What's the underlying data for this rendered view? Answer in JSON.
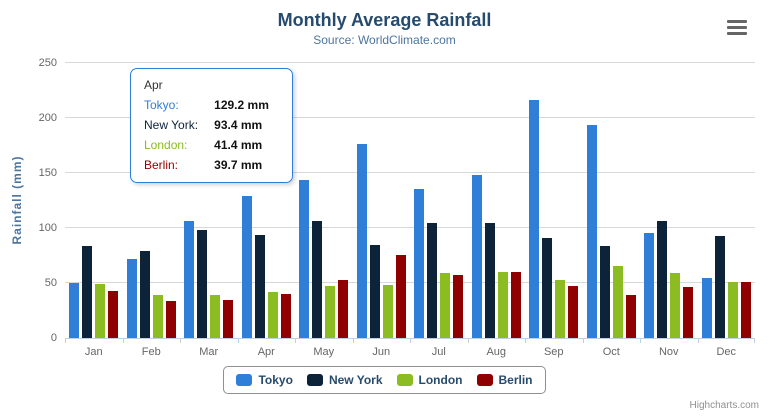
{
  "header": {
    "title": "Monthly Average Rainfall",
    "subtitle": "Source: WorldClimate.com"
  },
  "y_axis": {
    "title": "Rainfall (mm)",
    "ticks": [
      0,
      50,
      100,
      150,
      200,
      250
    ]
  },
  "chart_data": {
    "type": "bar",
    "title": "Monthly Average Rainfall",
    "subtitle": "Source: WorldClimate.com",
    "xlabel": "",
    "ylabel": "Rainfall (mm)",
    "ylim": [
      0,
      250
    ],
    "grid": true,
    "legend_position": "bottom",
    "categories": [
      "Jan",
      "Feb",
      "Mar",
      "Apr",
      "May",
      "Jun",
      "Jul",
      "Aug",
      "Sep",
      "Oct",
      "Nov",
      "Dec"
    ],
    "series": [
      {
        "name": "Tokyo",
        "color": "#2f7ed8",
        "values": [
          49.9,
          71.5,
          106.4,
          129.2,
          144.0,
          176.0,
          135.6,
          148.5,
          216.4,
          194.1,
          95.6,
          54.4
        ]
      },
      {
        "name": "New York",
        "color": "#0d233a",
        "values": [
          83.6,
          78.8,
          98.5,
          93.4,
          106.0,
          84.5,
          105.0,
          104.3,
          91.2,
          83.5,
          106.6,
          92.3
        ]
      },
      {
        "name": "London",
        "color": "#8bbc21",
        "values": [
          48.9,
          38.8,
          39.3,
          41.4,
          47.0,
          48.3,
          59.0,
          59.6,
          52.4,
          65.2,
          59.3,
          51.2
        ]
      },
      {
        "name": "Berlin",
        "color": "#910000",
        "values": [
          42.4,
          33.2,
          34.5,
          39.7,
          52.6,
          75.5,
          57.4,
          60.4,
          47.6,
          39.1,
          46.8,
          51.1
        ]
      }
    ]
  },
  "tooltip": {
    "header": "Apr",
    "rows": [
      {
        "name": "Tokyo:",
        "value": "129.2 mm",
        "color": "#2f7ed8"
      },
      {
        "name": "New York:",
        "value": "93.4 mm",
        "color": "#0d233a"
      },
      {
        "name": "London:",
        "value": "41.4 mm",
        "color": "#8bbc21"
      },
      {
        "name": "Berlin:",
        "value": "39.7 mm",
        "color": "#910000"
      }
    ]
  },
  "legend": {
    "items": [
      {
        "label": "Tokyo",
        "color": "#2f7ed8"
      },
      {
        "label": "New York",
        "color": "#0d233a"
      },
      {
        "label": "London",
        "color": "#8bbc21"
      },
      {
        "label": "Berlin",
        "color": "#910000"
      }
    ]
  },
  "credits": {
    "label": "Highcharts.com"
  }
}
